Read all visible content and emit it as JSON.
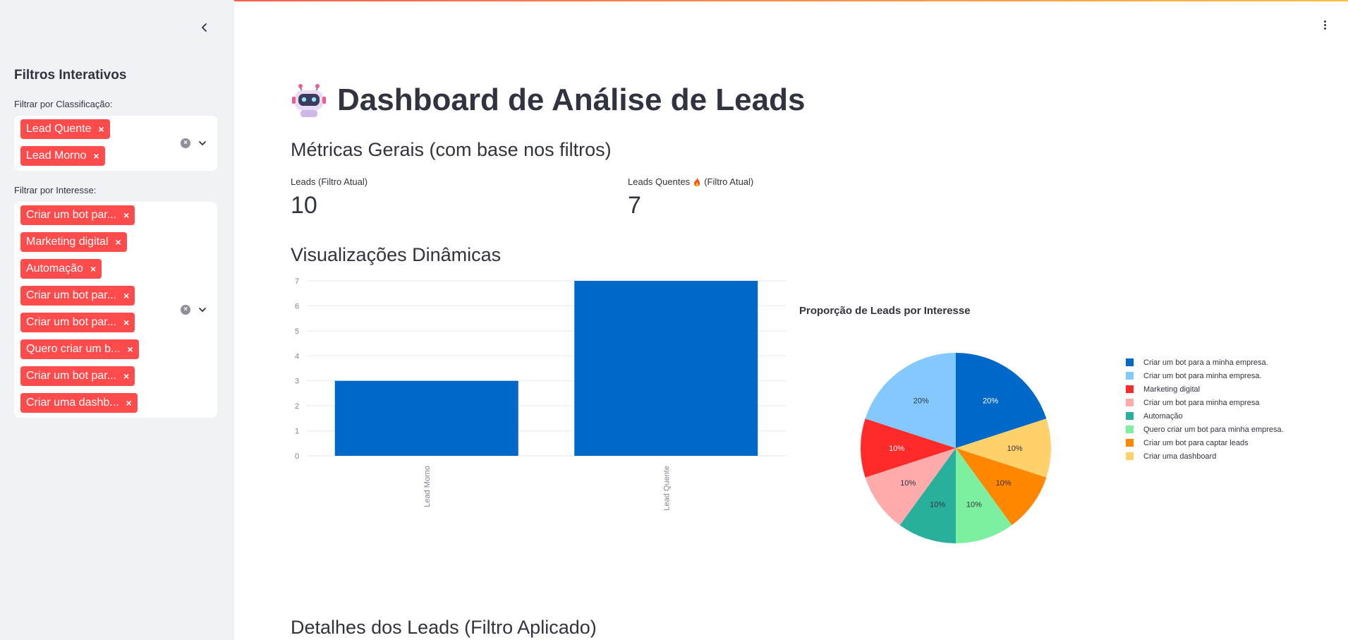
{
  "sidebar": {
    "title": "Filtros Interativos",
    "filter_classificacao": {
      "label": "Filtrar por Classificação:",
      "tags": [
        "Lead Quente",
        "Lead Morno"
      ]
    },
    "filter_interesse": {
      "label": "Filtrar por Interesse:",
      "tags": [
        "Criar um bot par...",
        "Marketing digital",
        "Automação",
        "Criar um bot par...",
        "Criar um bot par...",
        "Quero criar um b...",
        "Criar um bot par...",
        "Criar uma dashb..."
      ]
    },
    "tag_remove_glyph": "×"
  },
  "main": {
    "title": "Dashboard de Análise de Leads",
    "title_icon": "robot-icon",
    "metrics_header": "Métricas Gerais (com base nos filtros)",
    "metrics": [
      {
        "label": "Leads (Filtro Atual)",
        "value": "10"
      },
      {
        "label_before": "Leads Quentes",
        "icon": "fire-icon",
        "label_after": "(Filtro Atual)",
        "value": "7"
      }
    ],
    "viz_header": "Visualizações Dinâmicas",
    "details_header": "Detalhes dos Leads (Filtro Aplicado)"
  },
  "colors": {
    "accent": "#ff4b4b",
    "bar": "#0068c9",
    "sidebar_bg": "#f0f2f6"
  },
  "chart_data": [
    {
      "type": "bar",
      "categories": [
        "Lead Morno",
        "Lead Quente"
      ],
      "values": [
        3,
        7
      ],
      "ylim": [
        0,
        7
      ],
      "yticks": [
        0,
        1,
        2,
        3,
        4,
        5,
        6,
        7
      ],
      "title": "",
      "xlabel": "",
      "ylabel": "",
      "grid": true
    },
    {
      "type": "pie",
      "title": "Proporção de Leads por Interesse",
      "legend_position": "right",
      "slices": [
        {
          "label": "Criar um bot para a minha empresa.",
          "value": 20,
          "color": "#0068c9",
          "text": "20%",
          "text_color": "#ffffff"
        },
        {
          "label": "Criar uma dashboard",
          "value": 10,
          "color": "#ffd16a",
          "text": "10%",
          "text_color": "#31333f"
        },
        {
          "label": "Criar um bot para captar leads",
          "value": 10,
          "color": "#ff8700",
          "text": "10%",
          "text_color": "#31333f"
        },
        {
          "label": "Quero criar um bot para minha empresa.",
          "value": 10,
          "color": "#7defa1",
          "text": "10%",
          "text_color": "#31333f"
        },
        {
          "label": "Automação",
          "value": 10,
          "color": "#29b09d",
          "text": "10%",
          "text_color": "#31333f"
        },
        {
          "label": "Criar um bot para minha empresa",
          "value": 10,
          "color": "#ffabab",
          "text": "10%",
          "text_color": "#31333f"
        },
        {
          "label": "Marketing digital",
          "value": 10,
          "color": "#ff2b2b",
          "text": "10%",
          "text_color": "#ffffff"
        },
        {
          "label": "Criar um bot para minha empresa.",
          "value": 20,
          "color": "#83c9ff",
          "text": "20%",
          "text_color": "#31333f"
        }
      ],
      "legend_order": [
        "Criar um bot para a minha empresa.",
        "Criar um bot para minha empresa.",
        "Marketing digital",
        "Criar um bot para minha empresa",
        "Automação",
        "Quero criar um bot para minha empresa.",
        "Criar um bot para captar leads",
        "Criar uma dashboard"
      ]
    }
  ]
}
